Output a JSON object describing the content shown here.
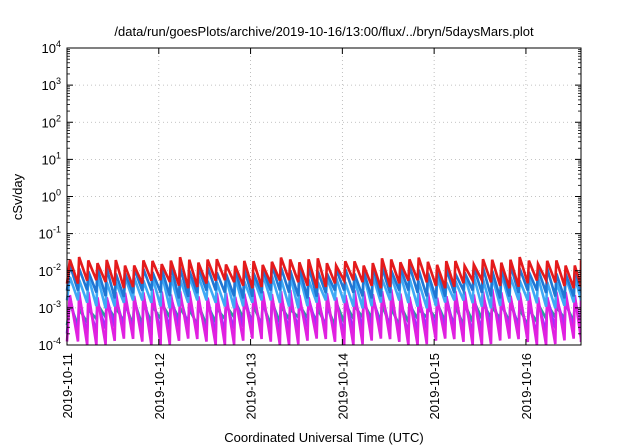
{
  "chart_data": {
    "type": "line",
    "title": "/data/run/goesPlots/archive/2019-10-16/13:00/flux/../bryn/5daysMars.plot",
    "xlabel": "Coordinated Universal Time (UTC)",
    "ylabel": "cSv/day",
    "yscale": "log",
    "ylim": [
      0.0001,
      10000
    ],
    "xlim": [
      0,
      5.6
    ],
    "grid": true,
    "x_tick_labels": [
      "2019-10-11",
      "2019-10-12",
      "2019-10-13",
      "2019-10-14",
      "2019-10-15",
      "2019-10-16"
    ],
    "x_tick_values": [
      0,
      1,
      2,
      3,
      4,
      5
    ],
    "y_tick_labels": [
      {
        "base": "10",
        "exp": "-4",
        "value": 0.0001
      },
      {
        "base": "10",
        "exp": "-3",
        "value": 0.001
      },
      {
        "base": "10",
        "exp": "-2",
        "value": 0.01
      },
      {
        "base": "10",
        "exp": "-1",
        "value": 0.1
      },
      {
        "base": "10",
        "exp": "0",
        "value": 1
      },
      {
        "base": "10",
        "exp": "1",
        "value": 10
      },
      {
        "base": "10",
        "exp": "2",
        "value": 100
      },
      {
        "base": "10",
        "exp": "3",
        "value": 1000
      },
      {
        "base": "10",
        "exp": "4",
        "value": 10000
      }
    ],
    "sawtooth_period_days": 0.1,
    "series": [
      {
        "name": "red",
        "color": "#e41a1c",
        "peak": 0.018,
        "trough": 0.0045
      },
      {
        "name": "blue",
        "color": "#1f77d4",
        "peak": 0.011,
        "trough": 0.0024
      },
      {
        "name": "lightblue",
        "color": "#3fa9f5",
        "peak": 0.0065,
        "trough": 0.0013
      },
      {
        "name": "magenta",
        "color": "#e020e0",
        "peak": 0.0025,
        "trough": 0.00012
      },
      {
        "name": "purple",
        "color": "#9b30ff",
        "peak": 0.0018,
        "trough": 0.00025
      },
      {
        "name": "teal",
        "color": "#2aa198",
        "peak": 0.0012,
        "trough": 0.00045
      }
    ]
  }
}
